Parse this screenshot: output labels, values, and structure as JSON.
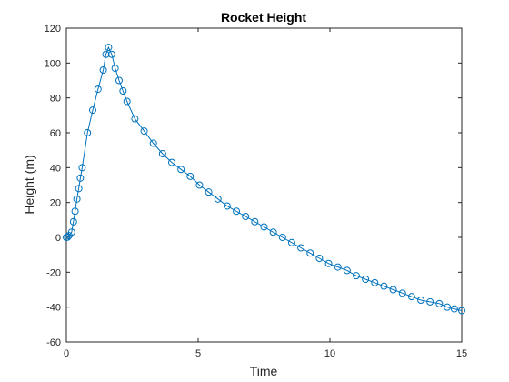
{
  "chart_data": {
    "type": "line",
    "title": "Rocket Height",
    "xlabel": "Time",
    "ylabel": "Height (m)",
    "xlim": [
      0,
      15
    ],
    "ylim": [
      -60,
      120
    ],
    "xticks": [
      0,
      5,
      10,
      15
    ],
    "yticks": [
      -60,
      -40,
      -20,
      0,
      20,
      40,
      60,
      80,
      100,
      120
    ],
    "grid": false,
    "legend": "none",
    "marker": "circle",
    "color": "#0072BD",
    "series": [
      {
        "x": [
          0,
          0.05,
          0.1,
          0.2,
          0.27,
          0.33,
          0.4,
          0.47,
          0.53,
          0.6,
          0.8,
          1.0,
          1.2,
          1.4,
          1.5,
          1.6,
          1.72,
          1.85,
          2.0,
          2.15,
          2.3,
          2.6,
          2.95,
          3.3,
          3.65,
          4.0,
          4.35,
          4.7,
          5.05,
          5.4,
          5.75,
          6.1,
          6.45,
          6.8,
          7.15,
          7.5,
          7.85,
          8.2,
          8.55,
          8.9,
          9.25,
          9.6,
          9.95,
          10.3,
          10.65,
          11.0,
          11.35,
          11.7,
          12.05,
          12.4,
          12.75,
          13.1,
          13.45,
          13.8,
          14.15,
          14.45,
          14.72,
          15.0
        ],
        "y": [
          0,
          0.2,
          1,
          3,
          9,
          15,
          22,
          28,
          34,
          40,
          60,
          73,
          85,
          96,
          105,
          109,
          105,
          97,
          90,
          84,
          78,
          68,
          61,
          54,
          48,
          43,
          39,
          35,
          30,
          26,
          22,
          18,
          15,
          12,
          9,
          6,
          3,
          0,
          -3,
          -6,
          -9,
          -12,
          -15,
          -17,
          -19,
          -22,
          -24,
          -26,
          -28,
          -30,
          -32,
          -34,
          -36,
          -37,
          -38,
          -40,
          -41,
          -42
        ]
      }
    ]
  }
}
